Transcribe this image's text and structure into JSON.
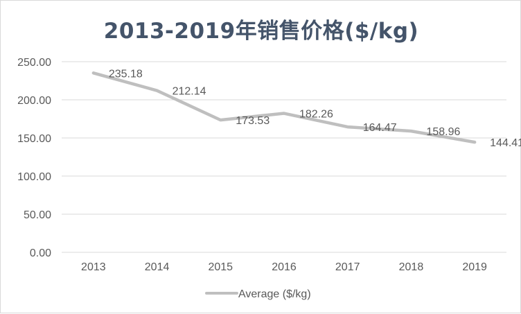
{
  "chart_data": {
    "type": "line",
    "title": "2013-2019年销售价格($/kg)",
    "categories": [
      "2013",
      "2014",
      "2015",
      "2016",
      "2017",
      "2018",
      "2019"
    ],
    "series": [
      {
        "name": "Average ($/kg)",
        "values": [
          235.18,
          212.14,
          173.53,
          182.26,
          164.47,
          158.96,
          144.41
        ],
        "labels": [
          "235.18",
          "212.14",
          "173.53",
          "182.26",
          "164.47",
          "158.96",
          "144.41"
        ],
        "color": "#bfbfbf"
      }
    ],
    "ylim": [
      0,
      250
    ],
    "yticks": [
      "0.00",
      "50.00",
      "100.00",
      "150.00",
      "200.00",
      "250.00"
    ],
    "ytick_values": [
      0,
      50,
      100,
      150,
      200,
      250
    ],
    "grid": true,
    "legend": "bottom",
    "gridline_color": "#d9d9d9",
    "title_color": "#44546a",
    "text_color": "#595959"
  }
}
